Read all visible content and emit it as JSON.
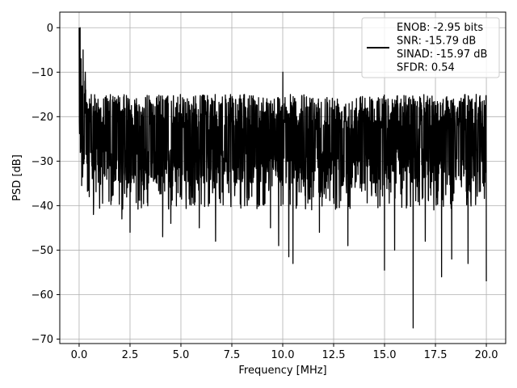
{
  "chart_data": {
    "type": "line",
    "title": "",
    "xlabel": "Frequency [MHz]",
    "ylabel": "PSD [dB]",
    "xlim": [
      -0.95,
      20.95
    ],
    "ylim": [
      -71,
      3.5
    ],
    "xticks": [
      0.0,
      2.5,
      5.0,
      7.5,
      10.0,
      12.5,
      15.0,
      17.5,
      20.0
    ],
    "xtick_labels": [
      "0.0",
      "2.5",
      "5.0",
      "7.5",
      "10.0",
      "12.5",
      "15.0",
      "17.5",
      "20.0"
    ],
    "yticks": [
      0,
      -10,
      -20,
      -30,
      -40,
      -50,
      -60,
      -70
    ],
    "ytick_labels": [
      "0",
      "−10",
      "−20",
      "−30",
      "−40",
      "−50",
      "−60",
      "−70"
    ],
    "grid": true,
    "legend_position": "top-right",
    "series": [
      {
        "legend_lines": [
          "ENOB: -2.95 bits",
          "SNR: -15.79 dB",
          "SINAD: -15.97 dB",
          "SFDR: 0.54"
        ],
        "color": "#000000",
        "x_range": [
          0,
          20
        ],
        "points": 2048,
        "typical_range_db": [
          -35,
          -15
        ],
        "peak": {
          "x": 0.0,
          "y": 0.0
        },
        "minimum": {
          "x": 16.4,
          "y": -67.5
        },
        "notable_dips": [
          {
            "x": 0.5,
            "y": -38
          },
          {
            "x": 0.7,
            "y": -42
          },
          {
            "x": 2.1,
            "y": -43
          },
          {
            "x": 2.5,
            "y": -46
          },
          {
            "x": 4.1,
            "y": -47
          },
          {
            "x": 4.5,
            "y": -44
          },
          {
            "x": 5.9,
            "y": -45
          },
          {
            "x": 6.7,
            "y": -48
          },
          {
            "x": 9.4,
            "y": -45
          },
          {
            "x": 9.8,
            "y": -49
          },
          {
            "x": 10.3,
            "y": -51.5
          },
          {
            "x": 10.5,
            "y": -53
          },
          {
            "x": 11.8,
            "y": -46
          },
          {
            "x": 13.2,
            "y": -49
          },
          {
            "x": 15.0,
            "y": -54.5
          },
          {
            "x": 15.5,
            "y": -50
          },
          {
            "x": 16.4,
            "y": -67.5
          },
          {
            "x": 17.0,
            "y": -48
          },
          {
            "x": 17.8,
            "y": -56
          },
          {
            "x": 18.3,
            "y": -52
          },
          {
            "x": 19.1,
            "y": -53
          },
          {
            "x": 20.0,
            "y": -57
          }
        ],
        "notable_peaks": [
          {
            "x": 0.05,
            "y": 0.0
          },
          {
            "x": 0.1,
            "y": -7
          },
          {
            "x": 0.2,
            "y": -5
          },
          {
            "x": 0.3,
            "y": -10
          },
          {
            "x": 10.0,
            "y": -10
          },
          {
            "x": 19.5,
            "y": -15
          }
        ]
      }
    ]
  }
}
